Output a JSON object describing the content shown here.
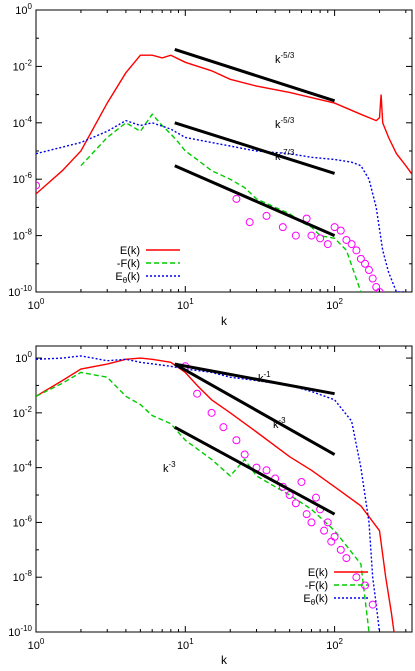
{
  "chart_data": [
    {
      "type": "line",
      "title": "",
      "xlabel": "k",
      "ylabel": "",
      "xscale": "log",
      "yscale": "log",
      "xlim": [
        1,
        330
      ],
      "ylim": [
        1e-10,
        1
      ],
      "x_ticks": [
        1,
        10,
        100
      ],
      "x_tick_labels": [
        "10^0",
        "10^1",
        "10^2"
      ],
      "y_ticks": [
        1,
        0.01,
        0.0001,
        1e-06,
        1e-08,
        1e-10
      ],
      "y_tick_labels": [
        "10^0",
        "10^-2",
        "10^-4",
        "10^-6",
        "10^-8",
        "10^-10"
      ],
      "legend_position": "bottom-left",
      "series": [
        {
          "name": "E(k)",
          "color": "#ff0000",
          "style": "solid",
          "x": [
            1,
            1.5,
            2,
            3,
            4,
            5,
            6,
            7,
            8,
            10,
            15,
            20,
            30,
            50,
            100,
            150,
            190,
            200,
            205,
            210,
            230,
            260,
            300,
            330
          ],
          "y": [
            3e-07,
            2e-06,
            1e-05,
            0.0005,
            0.006,
            0.025,
            0.025,
            0.02,
            0.025,
            0.014,
            0.007,
            0.0035,
            0.002,
            0.0012,
            0.0005,
            0.0002,
            0.00012,
            0.00015,
            0.001,
            0.0001,
            3e-05,
            8e-06,
            3e-06,
            1.5e-06
          ]
        },
        {
          "name": "-F(k)",
          "color": "#00cc00",
          "style": "dashed",
          "x": [
            2,
            3,
            4,
            5,
            6,
            7,
            8,
            9,
            10,
            12,
            15,
            20,
            25,
            30,
            40,
            50,
            60,
            70,
            80,
            100,
            120,
            150
          ],
          "y": [
            3e-06,
            3e-05,
            0.0001,
            5e-05,
            0.0002,
            8e-05,
            4e-05,
            2e-05,
            1e-05,
            5e-06,
            2e-06,
            1e-06,
            5e-07,
            2e-07,
            1e-07,
            6e-08,
            3e-08,
            2e-08,
            1e-08,
            8e-09,
            3e-09,
            1e-10
          ]
        },
        {
          "name": "E_θ(k)",
          "color": "#0000ee",
          "style": "dotted",
          "x": [
            1,
            2,
            3,
            4,
            5,
            6,
            8,
            10,
            15,
            20,
            30,
            50,
            70,
            100,
            130,
            150,
            170,
            190,
            210,
            230,
            260,
            300
          ],
          "y": [
            8e-06,
            2e-05,
            5e-05,
            0.00012,
            8e-05,
            0.0001,
            6e-05,
            3e-05,
            2e-05,
            1.5e-05,
            1e-05,
            8e-06,
            6e-06,
            5e-06,
            4e-06,
            3e-06,
            1e-06,
            1e-07,
            3e-09,
            5e-10,
            1e-10,
            1e-10
          ]
        },
        {
          "name": "",
          "color": "#ff00ff",
          "style": "circles",
          "x": [
            1,
            22,
            27,
            35,
            45,
            55,
            65,
            70,
            80,
            90,
            100,
            110,
            120,
            130,
            140,
            150,
            160,
            170,
            180,
            190,
            200
          ],
          "y": [
            6e-07,
            2e-07,
            3e-08,
            5e-08,
            2e-08,
            1e-08,
            4e-08,
            1e-08,
            8e-09,
            5e-09,
            2e-08,
            1.5e-08,
            7e-09,
            5e-09,
            3e-09,
            1.5e-09,
            1e-09,
            6e-10,
            3e-10,
            1.5e-10,
            1e-10
          ]
        }
      ],
      "reference_lines": [
        {
          "label": "k^-5/3",
          "x": [
            8.5,
            100
          ],
          "y": [
            0.04,
            0.0006
          ]
        },
        {
          "label": "k^-5/3",
          "x": [
            8.5,
            100
          ],
          "y": [
            0.0001,
            1.6e-06
          ]
        },
        {
          "label": "k^-7/3",
          "x": [
            8.5,
            100
          ],
          "y": [
            3e-06,
            1e-08
          ]
        }
      ],
      "annotations": [
        "k^-5/3",
        "k^-5/3",
        "k^-7/3"
      ]
    },
    {
      "type": "line",
      "title": "",
      "xlabel": "k",
      "ylabel": "",
      "xscale": "log",
      "yscale": "log",
      "xlim": [
        1,
        330
      ],
      "ylim": [
        1e-10,
        10
      ],
      "x_ticks": [
        1,
        10,
        100
      ],
      "x_tick_labels": [
        "10^0",
        "10^1",
        "10^2"
      ],
      "y_ticks": [
        1,
        0.01,
        0.0001,
        1e-06,
        1e-08,
        1e-10
      ],
      "y_tick_labels": [
        "10^0",
        "10^-2",
        "10^-4",
        "10^-6",
        "10^-8",
        "10^-10"
      ],
      "legend_position": "bottom-right",
      "series": [
        {
          "name": "E(k)",
          "color": "#ff0000",
          "style": "solid",
          "x": [
            1,
            1.5,
            2,
            3,
            4,
            5,
            6,
            8,
            10,
            12,
            15,
            20,
            30,
            50,
            70,
            100,
            150,
            200,
            220,
            240,
            250
          ],
          "y": [
            0.04,
            0.15,
            0.4,
            0.6,
            0.9,
            1,
            0.9,
            0.7,
            0.3,
            0.1,
            0.03,
            0.01,
            0.002,
            0.00025,
            8e-05,
            2e-05,
            4e-06,
            5e-07,
            1e-08,
            5e-10,
            1e-10
          ]
        },
        {
          "name": "-F(k)",
          "color": "#00cc00",
          "style": "dashed",
          "x": [
            1,
            1.5,
            2,
            3,
            4,
            5,
            6,
            8,
            10,
            15,
            20,
            25,
            30,
            40,
            50,
            70,
            100,
            150,
            170
          ],
          "y": [
            0.04,
            0.12,
            0.3,
            0.2,
            0.04,
            0.02,
            0.008,
            0.004,
            0.001,
            0.0002,
            5e-05,
            0.0002,
            5e-05,
            2e-05,
            1e-05,
            3e-06,
            5e-07,
            3e-08,
            1e-10
          ]
        },
        {
          "name": "E_θ(k)",
          "color": "#0000ee",
          "style": "dotted",
          "x": [
            1,
            1.5,
            2,
            3,
            4,
            5,
            8,
            10,
            15,
            20,
            30,
            50,
            70,
            100,
            130,
            150,
            170,
            180,
            190,
            200
          ],
          "y": [
            0.9,
            1,
            1.2,
            0.8,
            0.9,
            0.7,
            0.5,
            0.4,
            0.3,
            0.2,
            0.15,
            0.1,
            0.06,
            0.03,
            0.005,
            0.0001,
            1e-06,
            1e-08,
            1e-09,
            1e-10
          ]
        },
        {
          "name": "",
          "color": "#ff00ff",
          "style": "circles",
          "x": [
            10,
            12,
            15,
            18,
            22,
            25,
            30,
            35,
            40,
            45,
            50,
            55,
            60,
            65,
            70,
            75,
            80,
            85,
            90,
            95,
            100,
            110,
            120,
            140,
            160,
            180
          ],
          "y": [
            0.5,
            0.05,
            0.01,
            0.003,
            0.001,
            0.0003,
            0.0001,
            8e-05,
            4e-05,
            2e-05,
            1e-05,
            5e-06,
            3e-05,
            2e-06,
            1e-06,
            8e-06,
            3e-06,
            5e-07,
            1e-06,
            2e-07,
            3e-07,
            1e-07,
            5e-08,
            1e-08,
            5e-09,
            1e-09
          ]
        }
      ],
      "reference_lines": [
        {
          "label": "k^-1",
          "x": [
            8.5,
            100
          ],
          "y": [
            0.6,
            0.05
          ]
        },
        {
          "label": "k^-3",
          "x": [
            8.5,
            100
          ],
          "y": [
            0.6,
            0.0003
          ]
        },
        {
          "label": "k^-3",
          "x": [
            8.5,
            100
          ],
          "y": [
            0.003,
            2e-06
          ]
        }
      ],
      "annotations": [
        "k^-1",
        "k^-3",
        "k^-3"
      ]
    }
  ],
  "legend": {
    "E": "E(k)",
    "F": "-F(k)",
    "Etheta_base": "E",
    "Etheta_sub": "θ",
    "Etheta_tail": "(k)"
  }
}
